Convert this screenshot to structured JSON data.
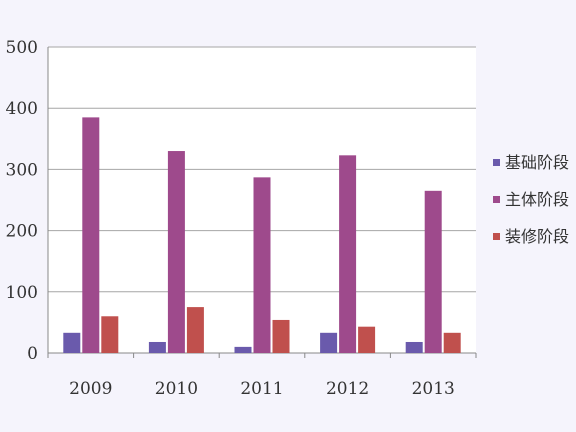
{
  "chart_data": {
    "type": "bar",
    "title": "",
    "xlabel": "",
    "ylabel": "",
    "categories": [
      "2009",
      "2010",
      "2011",
      "2012",
      "2013"
    ],
    "series": [
      {
        "name": "基础阶段",
        "color": "#6a5aac",
        "values": [
          33,
          18,
          10,
          33,
          18
        ]
      },
      {
        "name": "主体阶段",
        "color": "#9e4a8c",
        "values": [
          385,
          330,
          287,
          323,
          265
        ]
      },
      {
        "name": "装修阶段",
        "color": "#c0504d",
        "values": [
          60,
          75,
          54,
          43,
          33
        ]
      }
    ],
    "ylim": [
      0,
      500
    ],
    "yticks": [
      "0",
      "100",
      "200",
      "300",
      "400",
      "500"
    ],
    "grid": true,
    "legend_position": "right"
  }
}
